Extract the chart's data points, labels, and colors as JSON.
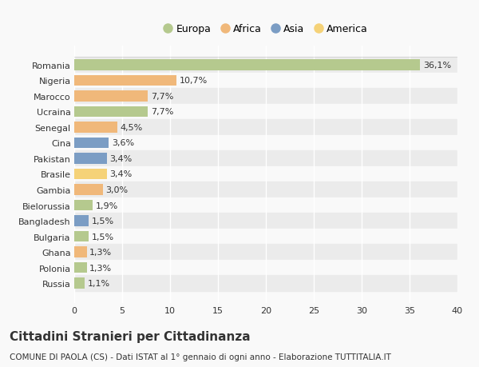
{
  "countries": [
    "Romania",
    "Nigeria",
    "Marocco",
    "Ucraina",
    "Senegal",
    "Cina",
    "Pakistan",
    "Brasile",
    "Gambia",
    "Bielorussia",
    "Bangladesh",
    "Bulgaria",
    "Ghana",
    "Polonia",
    "Russia"
  ],
  "values": [
    36.1,
    10.7,
    7.7,
    7.7,
    4.5,
    3.6,
    3.4,
    3.4,
    3.0,
    1.9,
    1.5,
    1.5,
    1.3,
    1.3,
    1.1
  ],
  "labels": [
    "36,1%",
    "10,7%",
    "7,7%",
    "7,7%",
    "4,5%",
    "3,6%",
    "3,4%",
    "3,4%",
    "3,0%",
    "1,9%",
    "1,5%",
    "1,5%",
    "1,3%",
    "1,3%",
    "1,1%"
  ],
  "colors": [
    "#b5c98e",
    "#f0b87a",
    "#f0b87a",
    "#b5c98e",
    "#f0b87a",
    "#7b9dc4",
    "#7b9dc4",
    "#f5d278",
    "#f0b87a",
    "#b5c98e",
    "#7b9dc4",
    "#b5c98e",
    "#f0b87a",
    "#b5c98e",
    "#b5c98e"
  ],
  "continent_colors": {
    "Europa": "#b5c98e",
    "Africa": "#f0b87a",
    "Asia": "#7b9dc4",
    "America": "#f5d278"
  },
  "title": "Cittadini Stranieri per Cittadinanza",
  "subtitle": "COMUNE DI PAOLA (CS) - Dati ISTAT al 1° gennaio di ogni anno - Elaborazione TUTTITALIA.IT",
  "xlim": [
    0,
    40
  ],
  "xticks": [
    0,
    5,
    10,
    15,
    20,
    25,
    30,
    35,
    40
  ],
  "background_color": "#f9f9f9",
  "bar_bg_even": "#ebebeb",
  "bar_bg_odd": "#f9f9f9",
  "grid_color": "#ffffff",
  "text_color": "#333333",
  "label_fontsize": 8,
  "tick_fontsize": 8,
  "title_fontsize": 11,
  "subtitle_fontsize": 7.5
}
